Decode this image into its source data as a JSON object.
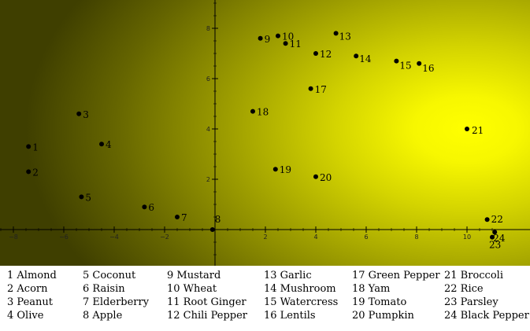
{
  "chart_data": {
    "type": "scatter",
    "xlim": [
      -8.5,
      11.2
    ],
    "ylim": [
      -1.3,
      9.2
    ],
    "x_ticks": [
      -8,
      -6,
      -4,
      -2,
      0,
      2,
      4,
      6,
      8,
      10
    ],
    "y_ticks": [
      2,
      4,
      6,
      8
    ],
    "grid": false,
    "background": "yellow-olive radial gradient centered near (10, 4)",
    "colors": {
      "center": "#ffff00",
      "edge": "#3f3f00",
      "point": "#000000"
    },
    "points": [
      {
        "id": "1",
        "name": "Almond",
        "x": -7.4,
        "y": 3.3
      },
      {
        "id": "2",
        "name": "Acorn",
        "x": -7.4,
        "y": 2.3
      },
      {
        "id": "3",
        "name": "Peanut",
        "x": -5.4,
        "y": 4.6
      },
      {
        "id": "4",
        "name": "Olive",
        "x": -4.5,
        "y": 3.4
      },
      {
        "id": "5",
        "name": "Coconut",
        "x": -5.3,
        "y": 1.3
      },
      {
        "id": "6",
        "name": "Raisin",
        "x": -2.8,
        "y": 0.9
      },
      {
        "id": "7",
        "name": "Elderberry",
        "x": -1.5,
        "y": 0.5
      },
      {
        "id": "8",
        "name": "Apple",
        "x": -0.1,
        "y": 0.0
      },
      {
        "id": "9",
        "name": "Mustard",
        "x": 1.8,
        "y": 7.6
      },
      {
        "id": "10",
        "name": "Wheat",
        "x": 2.5,
        "y": 7.7
      },
      {
        "id": "11",
        "name": "Root Ginger",
        "x": 2.8,
        "y": 7.4
      },
      {
        "id": "12",
        "name": "Chili Pepper",
        "x": 4.0,
        "y": 7.0
      },
      {
        "id": "13",
        "name": "Garlic",
        "x": 4.8,
        "y": 7.8
      },
      {
        "id": "14",
        "name": "Mushroom",
        "x": 5.6,
        "y": 6.9
      },
      {
        "id": "15",
        "name": "Watercress",
        "x": 7.2,
        "y": 6.7
      },
      {
        "id": "16",
        "name": "Lentils",
        "x": 8.1,
        "y": 6.6
      },
      {
        "id": "17",
        "name": "Green Pepper",
        "x": 3.8,
        "y": 5.6
      },
      {
        "id": "18",
        "name": "Yam",
        "x": 1.5,
        "y": 4.7
      },
      {
        "id": "19",
        "name": "Tomato",
        "x": 2.4,
        "y": 2.4
      },
      {
        "id": "20",
        "name": "Pumpkin",
        "x": 4.0,
        "y": 2.1
      },
      {
        "id": "21",
        "name": "Broccoli",
        "x": 10.0,
        "y": 4.0
      },
      {
        "id": "22",
        "name": "Rice",
        "x": 10.8,
        "y": 0.4
      },
      {
        "id": "23",
        "name": "Parsley",
        "x": 11.0,
        "y": -0.3
      },
      {
        "id": "24",
        "name": "Black Pepper",
        "x": 11.1,
        "y": -0.1
      }
    ]
  }
}
